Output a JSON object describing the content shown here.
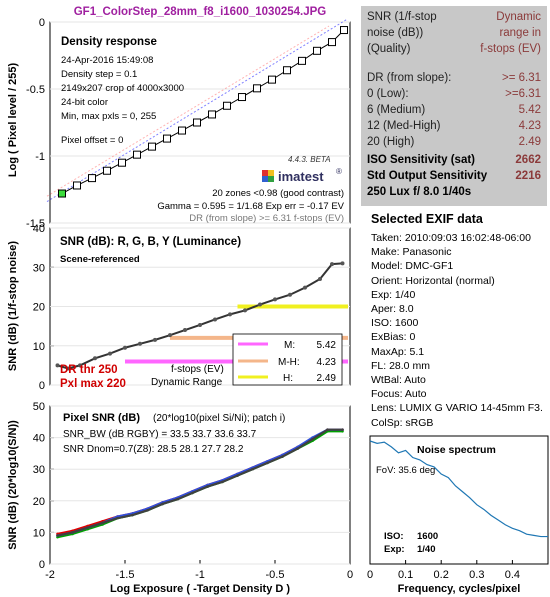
{
  "file_title": "GF1_ColorStep_28mm_f8_i1600_1030254.JPG",
  "info_panel": {
    "header_left": [
      "SNR (1/f-stop",
      "noise (dB))",
      "(Quality)"
    ],
    "header_right": [
      "Dynamic",
      "range in",
      "f-stops (EV)"
    ],
    "rows": [
      {
        "label": "DR (from slope):",
        "value": ">= 6.31"
      },
      {
        "label": "0  (Low):",
        "value": ">=6.31"
      },
      {
        "label": "6  (Medium)",
        "value": "5.42"
      },
      {
        "label": "12 (Med-High)",
        "value": "4.23"
      },
      {
        "label": "20  (High)",
        "value": "2.49"
      }
    ],
    "bold_rows": [
      {
        "label": "ISO Sensitivity (sat)",
        "value": "2662"
      },
      {
        "label": "Std Output Sensitivity",
        "value": "2216"
      },
      {
        "label": "250 Lux   f/ 8.0   1/40s",
        "value": ""
      }
    ]
  },
  "exif": {
    "title": "Selected EXIF data",
    "lines": [
      "Taken: 2010:09:03 16:02:48-06:00",
      "Make:  Panasonic",
      "Model: DMC-GF1",
      "Orient: Horizontal (normal)",
      "Exp:   1/40",
      "Aper:  8.0",
      "ISO:   1600",
      "ExBias: 0",
      "MaxAp: 5.1",
      "FL:    28.0 mm",
      "WtBal: Auto",
      "Focus:  Auto",
      "Lens:  LUMIX G VARIO 14-45mm F3.",
      "ColSp: sRGB"
    ]
  },
  "colors": {
    "density_line": "#000000",
    "fit_line": "#8080ff",
    "fit_line2": "#ff8080",
    "snr_line": "#333333",
    "m_band": "#ff66ff",
    "mh_band": "#f4b68a",
    "h_band": "#f0f020",
    "r": "#e00000",
    "g": "#00a000",
    "b": "#3050e0",
    "y": "#404040",
    "noise_spectrum": "#1f77b4",
    "dr_text": "#d00000"
  },
  "chart_data": [
    {
      "type": "line",
      "name": "density-response",
      "ylabel": "Log ( Pixel level / 255)",
      "ylim": [
        -1.5,
        0
      ],
      "xlim": [
        -2,
        0
      ],
      "yticks": [
        "0",
        "-0.5",
        "-1",
        "-1.5"
      ],
      "title": "Density response",
      "info_lines": [
        "24-Apr-2016 15:49:08",
        "Density step = 0.1",
        "2149x207 crop of 4000x3000",
        "24-bit color",
        "Min, max pxls = 0, 255",
        "Pixel offset = 0"
      ],
      "notes": [
        "20 zones <0.98 (good contrast)",
        "Gamma = 0.595 = 1/1.68  Exp err = -0.17 EV",
        "DR (from slope) >= 6.31 f-stops (EV)"
      ],
      "logo_version": "4.4.3. BETA",
      "logo_text": "imatest",
      "x": [
        -1.92,
        -1.82,
        -1.72,
        -1.62,
        -1.52,
        -1.42,
        -1.32,
        -1.22,
        -1.12,
        -1.02,
        -0.92,
        -0.82,
        -0.72,
        -0.62,
        -0.52,
        -0.42,
        -0.32,
        -0.22,
        -0.12,
        -0.04
      ],
      "values": [
        -1.28,
        -1.22,
        -1.165,
        -1.11,
        -1.05,
        -0.99,
        -0.93,
        -0.87,
        -0.81,
        -0.75,
        -0.69,
        -0.625,
        -0.56,
        -0.495,
        -0.43,
        -0.36,
        -0.29,
        -0.215,
        -0.15,
        -0.06
      ]
    },
    {
      "type": "line",
      "name": "snr-luminance",
      "ylabel": "SNR (dB) (1/f-stop noise)",
      "ylim": [
        0,
        40
      ],
      "xlim": [
        -2,
        0
      ],
      "yticks": [
        "40",
        "30",
        "20",
        "10",
        "0"
      ],
      "title": "SNR (dB): R, G, B, Y (Luminance)",
      "subtitle": "Scene-referenced",
      "x": [
        -1.95,
        -1.88,
        -1.8,
        -1.7,
        -1.6,
        -1.5,
        -1.4,
        -1.3,
        -1.2,
        -1.1,
        -1.0,
        -0.9,
        -0.8,
        -0.7,
        -0.6,
        -0.5,
        -0.4,
        -0.3,
        -0.2,
        -0.12,
        -0.05
      ],
      "values": [
        5,
        4.2,
        5,
        6.8,
        8,
        9.5,
        10.5,
        11.5,
        12.7,
        14,
        15.3,
        16.7,
        18,
        19,
        20.5,
        21.8,
        23,
        24.8,
        27,
        30.8,
        31
      ],
      "bands": [
        {
          "label": "M:",
          "value": "5.42",
          "y": 6,
          "x_start": -1.5
        },
        {
          "label": "M-H:",
          "value": "4.23",
          "y": 12,
          "x_start": -1.2
        },
        {
          "label": "H:",
          "value": "2.49",
          "y": 20,
          "x_start": -0.75
        }
      ],
      "legend_title": [
        "f-stops (EV)",
        "Dynamic Range"
      ],
      "dr_labels": [
        "DR thr 250",
        "Pxl max 220"
      ]
    },
    {
      "type": "line",
      "name": "pixel-snr",
      "ylabel": "SNR (dB) (20*log10(S/N))",
      "xlabel": "Log Exposure ( -Target Density D )",
      "ylim": [
        0,
        50
      ],
      "xlim": [
        -2,
        0
      ],
      "yticks": [
        "50",
        "40",
        "30",
        "20",
        "10",
        "0"
      ],
      "xticks": [
        "-2",
        "-1.5",
        "-1",
        "-0.5",
        "0"
      ],
      "title": "Pixel SNR (dB)",
      "title_rest": "(20*log10(pixel Si/Ni); patch i)",
      "lines": [
        "SNR_BW (dB RGBY) = 33.5 33.7 33.6 33.7",
        "SNR Dnom=0.7(Z8): 28.5 28.1 27.7 28.2"
      ],
      "x": [
        -1.95,
        -1.85,
        -1.75,
        -1.65,
        -1.55,
        -1.45,
        -1.35,
        -1.25,
        -1.15,
        -1.05,
        -0.95,
        -0.85,
        -0.75,
        -0.65,
        -0.55,
        -0.45,
        -0.35,
        -0.25,
        -0.15,
        -0.05
      ],
      "series": [
        {
          "name": "R",
          "values": [
            9.5,
            10.5,
            12,
            13.5,
            15,
            16,
            17.5,
            19.5,
            21,
            23,
            25,
            26.5,
            28.5,
            30.5,
            32.5,
            34.5,
            37,
            39.5,
            42.5,
            42.5
          ]
        },
        {
          "name": "G",
          "values": [
            8.5,
            9.5,
            11,
            12.5,
            14.5,
            15.5,
            17,
            19,
            20.5,
            22.5,
            24.5,
            26,
            28,
            30,
            32,
            34,
            36.5,
            39,
            42,
            42
          ]
        },
        {
          "name": "B",
          "values": [
            9,
            10,
            11.5,
            13,
            15,
            16,
            17.5,
            19.5,
            21,
            23,
            25,
            26.5,
            28.5,
            30.5,
            32.5,
            34.5,
            37,
            40,
            42.5,
            42.5
          ]
        },
        {
          "name": "Y",
          "values": [
            9,
            10,
            11.5,
            13,
            14.5,
            15.5,
            17,
            19,
            20.5,
            22.5,
            24.5,
            26,
            28,
            30,
            32,
            34,
            36.5,
            39.5,
            42.5,
            42.5
          ]
        }
      ]
    },
    {
      "type": "line",
      "name": "noise-spectrum",
      "title": "Noise spectrum",
      "xlabel": "Frequency, cycles/pixel",
      "xlim": [
        0,
        0.5
      ],
      "xticks": [
        "0",
        "0.1",
        "0.2",
        "0.3",
        "0.4"
      ],
      "fov": "FoV:   35.6 deg",
      "iso_label": "ISO:",
      "iso_value": "1600",
      "exp_label": "Exp:",
      "exp_value": "1/40",
      "x": [
        0.0,
        0.02,
        0.04,
        0.06,
        0.08,
        0.1,
        0.12,
        0.14,
        0.16,
        0.18,
        0.2,
        0.22,
        0.24,
        0.26,
        0.28,
        0.3,
        0.32,
        0.34,
        0.36,
        0.38,
        0.4,
        0.42,
        0.44,
        0.46,
        0.48,
        0.5
      ],
      "values": [
        1.0,
        0.98,
        0.99,
        0.95,
        0.9,
        0.92,
        0.86,
        0.84,
        0.8,
        0.78,
        0.72,
        0.69,
        0.62,
        0.57,
        0.52,
        0.46,
        0.42,
        0.37,
        0.33,
        0.29,
        0.26,
        0.24,
        0.21,
        0.2,
        0.19,
        0.19
      ]
    }
  ]
}
